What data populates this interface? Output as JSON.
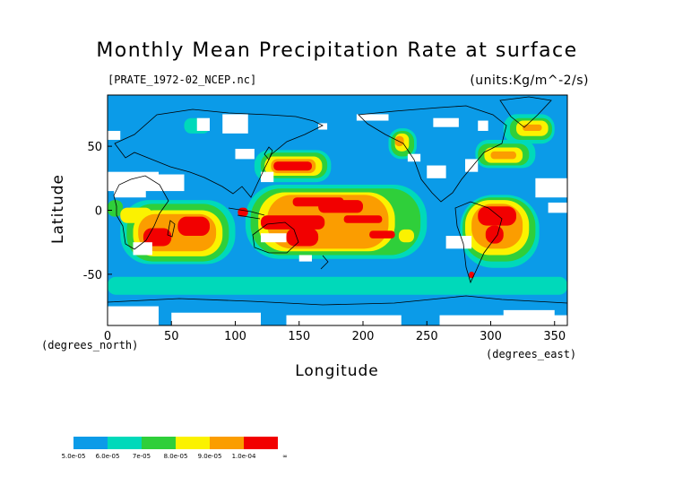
{
  "title": "Monthly Mean Precipitation Rate at surface",
  "file_label": "[PRATE_1972-02_NCEP.nc]",
  "units_label": "(units:Kg/m^-2/s)",
  "y_axis_title": "Latitude",
  "x_axis_title": "Longitude",
  "y_unit_label": "(degrees_north)",
  "x_unit_label": "(degrees_east)",
  "colors": {
    "ocean_base": "#0b9be8",
    "missing": "#ffffff",
    "coast": "#000000"
  },
  "chart_data": {
    "type": "heatmap",
    "title": "Monthly Mean Precipitation Rate at surface",
    "xlabel": "Longitude",
    "ylabel": "Latitude",
    "xlim": [
      0,
      360
    ],
    "ylim": [
      -90,
      90
    ],
    "x_ticks": [
      "0",
      "50",
      "100",
      "150",
      "200",
      "250",
      "300",
      "350"
    ],
    "y_ticks": [
      "50",
      "0",
      "-50"
    ],
    "y_tick_values": [
      50,
      0,
      -50
    ],
    "x_tick_values": [
      0,
      50,
      100,
      150,
      200,
      250,
      300,
      350
    ],
    "colorbar": {
      "labels": [
        "5.0e-05",
        "6.0e-05",
        "7e-05",
        "8.0e-05",
        "9.0e-05",
        "1.0e-04",
        "∞"
      ],
      "colors": [
        "#0b9be8",
        "#00d9ba",
        "#2fcf3a",
        "#fbf200",
        "#fb9d00",
        "#f20000"
      ]
    },
    "regions": [
      {
        "level": 5,
        "lon": [
          130,
          160
        ],
        "lat": [
          31,
          38
        ]
      },
      {
        "level": 5,
        "lon": [
          145,
          185
        ],
        "lat": [
          3,
          10
        ]
      },
      {
        "level": 5,
        "lon": [
          165,
          200
        ],
        "lat": [
          -2,
          8
        ]
      },
      {
        "level": 5,
        "lon": [
          185,
          215
        ],
        "lat": [
          -10,
          -4
        ]
      },
      {
        "level": 5,
        "lon": [
          120,
          170
        ],
        "lat": [
          -15,
          -4
        ]
      },
      {
        "level": 5,
        "lon": [
          140,
          165
        ],
        "lat": [
          -28,
          -14
        ]
      },
      {
        "level": 5,
        "lon": [
          28,
          50
        ],
        "lat": [
          -28,
          -14
        ]
      },
      {
        "level": 5,
        "lon": [
          55,
          80
        ],
        "lat": [
          -20,
          -5
        ]
      },
      {
        "level": 5,
        "lon": [
          290,
          320
        ],
        "lat": [
          -12,
          3
        ]
      },
      {
        "level": 5,
        "lon": [
          296,
          310
        ],
        "lat": [
          -26,
          -12
        ]
      },
      {
        "level": 5,
        "lon": [
          283,
          287
        ],
        "lat": [
          -53,
          -48
        ]
      },
      {
        "level": 5,
        "lon": [
          102,
          110
        ],
        "lat": [
          -5,
          2
        ]
      },
      {
        "level": 5,
        "lon": [
          205,
          225
        ],
        "lat": [
          -22,
          -16
        ]
      },
      {
        "level": 4,
        "lon": [
          128,
          163
        ],
        "lat": [
          29,
          40
        ]
      },
      {
        "level": 4,
        "lon": [
          125,
          220
        ],
        "lat": [
          -30,
          12
        ]
      },
      {
        "level": 4,
        "lon": [
          24,
          85
        ],
        "lat": [
          -32,
          -3
        ]
      },
      {
        "level": 4,
        "lon": [
          285,
          325
        ],
        "lat": [
          -30,
          5
        ]
      },
      {
        "level": 4,
        "lon": [
          300,
          320
        ],
        "lat": [
          40,
          46
        ]
      },
      {
        "level": 4,
        "lon": [
          325,
          340
        ],
        "lat": [
          62,
          67
        ]
      },
      {
        "level": 4,
        "lon": [
          225,
          232
        ],
        "lat": [
          50,
          58
        ]
      },
      {
        "level": 3,
        "lon": [
          123,
          168
        ],
        "lat": [
          27,
          42
        ]
      },
      {
        "level": 3,
        "lon": [
          118,
          225
        ],
        "lat": [
          -32,
          14
        ]
      },
      {
        "level": 3,
        "lon": [
          20,
          90
        ],
        "lat": [
          -36,
          0
        ]
      },
      {
        "level": 3,
        "lon": [
          280,
          330
        ],
        "lat": [
          -35,
          8
        ]
      },
      {
        "level": 3,
        "lon": [
          295,
          325
        ],
        "lat": [
          37,
          49
        ]
      },
      {
        "level": 3,
        "lon": [
          320,
          345
        ],
        "lat": [
          58,
          70
        ]
      },
      {
        "level": 3,
        "lon": [
          225,
          236
        ],
        "lat": [
          46,
          60
        ]
      },
      {
        "level": 3,
        "lon": [
          10,
          35
        ],
        "lat": [
          -10,
          2
        ]
      },
      {
        "level": 3,
        "lon": [
          228,
          240
        ],
        "lat": [
          -25,
          -15
        ]
      },
      {
        "level": 2,
        "lon": [
          120,
          172
        ],
        "lat": [
          25,
          45
        ]
      },
      {
        "level": 2,
        "lon": [
          112,
          245
        ],
        "lat": [
          -35,
          17
        ]
      },
      {
        "level": 2,
        "lon": [
          15,
          95
        ],
        "lat": [
          -40,
          5
        ]
      },
      {
        "level": 2,
        "lon": [
          278,
          335
        ],
        "lat": [
          -40,
          10
        ]
      },
      {
        "level": 2,
        "lon": [
          290,
          330
        ],
        "lat": [
          35,
          52
        ]
      },
      {
        "level": 2,
        "lon": [
          315,
          348
        ],
        "lat": [
          55,
          72
        ]
      },
      {
        "level": 2,
        "lon": [
          222,
          240
        ],
        "lat": [
          42,
          62
        ]
      },
      {
        "level": 2,
        "lon": [
          0,
          12
        ],
        "lat": [
          -5,
          8
        ]
      },
      {
        "level": 1,
        "lon": [
          115,
          175
        ],
        "lat": [
          22,
          47
        ]
      },
      {
        "level": 1,
        "lon": [
          108,
          250
        ],
        "lat": [
          -38,
          20
        ]
      },
      {
        "level": 1,
        "lon": [
          10,
          100
        ],
        "lat": [
          -42,
          8
        ]
      },
      {
        "level": 1,
        "lon": [
          276,
          338
        ],
        "lat": [
          -45,
          12
        ]
      },
      {
        "level": 1,
        "lon": [
          288,
          335
        ],
        "lat": [
          33,
          55
        ]
      },
      {
        "level": 1,
        "lon": [
          310,
          350
        ],
        "lat": [
          52,
          75
        ]
      },
      {
        "level": 1,
        "lon": [
          220,
          242
        ],
        "lat": [
          40,
          64
        ]
      },
      {
        "level": 1,
        "lon": [
          60,
          80
        ],
        "lat": [
          60,
          72
        ]
      },
      {
        "level": 1,
        "lon": [
          0,
          360
        ],
        "lat": [
          -66,
          -52
        ]
      }
    ],
    "missing_regions": [
      {
        "lon": [
          0,
          40
        ],
        "lat": [
          15,
          30
        ]
      },
      {
        "lon": [
          5,
          30
        ],
        "lat": [
          10,
          22
        ]
      },
      {
        "lon": [
          40,
          60
        ],
        "lat": [
          15,
          28
        ]
      },
      {
        "lon": [
          70,
          80
        ],
        "lat": [
          62,
          72
        ]
      },
      {
        "lon": [
          90,
          110
        ],
        "lat": [
          60,
          75
        ]
      },
      {
        "lon": [
          100,
          115
        ],
        "lat": [
          40,
          48
        ]
      },
      {
        "lon": [
          0,
          10
        ],
        "lat": [
          55,
          62
        ]
      },
      {
        "lon": [
          195,
          220
        ],
        "lat": [
          70,
          75
        ]
      },
      {
        "lon": [
          255,
          275
        ],
        "lat": [
          65,
          72
        ]
      },
      {
        "lon": [
          280,
          290
        ],
        "lat": [
          30,
          40
        ]
      },
      {
        "lon": [
          250,
          265
        ],
        "lat": [
          25,
          35
        ]
      },
      {
        "lon": [
          235,
          245
        ],
        "lat": [
          38,
          44
        ]
      },
      {
        "lon": [
          290,
          298
        ],
        "lat": [
          62,
          70
        ]
      },
      {
        "lon": [
          165,
          172
        ],
        "lat": [
          63,
          68
        ]
      },
      {
        "lon": [
          120,
          130
        ],
        "lat": [
          22,
          30
        ]
      },
      {
        "lon": [
          20,
          35
        ],
        "lat": [
          -35,
          -25
        ]
      },
      {
        "lon": [
          120,
          140
        ],
        "lat": [
          -25,
          -18
        ]
      },
      {
        "lon": [
          0,
          40
        ],
        "lat": [
          -90,
          -75
        ]
      },
      {
        "lon": [
          50,
          120
        ],
        "lat": [
          -90,
          -80
        ]
      },
      {
        "lon": [
          140,
          230
        ],
        "lat": [
          -90,
          -82
        ]
      },
      {
        "lon": [
          260,
          360
        ],
        "lat": [
          -90,
          -82
        ]
      },
      {
        "lon": [
          310,
          350
        ],
        "lat": [
          -85,
          -78
        ]
      },
      {
        "lon": [
          335,
          360
        ],
        "lat": [
          10,
          25
        ]
      },
      {
        "lon": [
          345,
          360
        ],
        "lat": [
          -2,
          6
        ]
      },
      {
        "lon": [
          265,
          285
        ],
        "lat": [
          -30,
          -20
        ]
      },
      {
        "lon": [
          150,
          160
        ],
        "lat": [
          -40,
          -35
        ]
      }
    ]
  }
}
